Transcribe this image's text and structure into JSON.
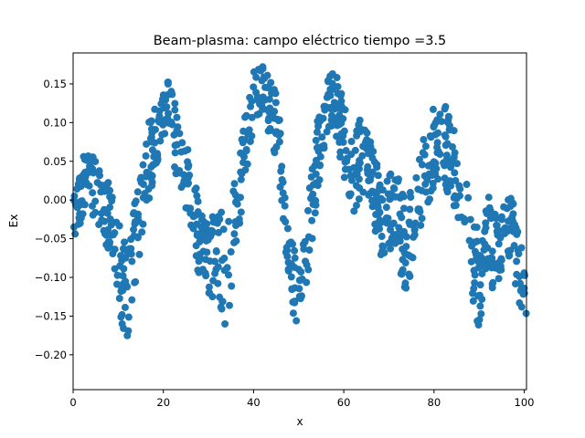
{
  "chart_data": {
    "type": "scatter",
    "title": "Beam-plasma: campo eléctrico  tiempo =3.5",
    "xlabel": "x",
    "ylabel": "Ex",
    "xlim": [
      0,
      100.5
    ],
    "ylim": [
      -0.245,
      0.19
    ],
    "grid": false,
    "legend": "none",
    "marker_color": "#1f77b4",
    "x_ticks": [
      0,
      20,
      40,
      60,
      80,
      100
    ],
    "x_tick_labels": [
      "0",
      "20",
      "40",
      "60",
      "80",
      "100"
    ],
    "y_ticks": [
      -0.2,
      -0.15,
      -0.1,
      -0.05,
      0.0,
      0.05,
      0.1,
      0.15
    ],
    "y_tick_labels": [
      "−0.20",
      "−0.15",
      "−0.10",
      "−0.05",
      "0.00",
      "0.05",
      "0.10",
      "0.15"
    ],
    "envelope": {
      "x": [
        0,
        2,
        4,
        6,
        8,
        10,
        12,
        14,
        16,
        18,
        20,
        22,
        24,
        26,
        28,
        30,
        32,
        34,
        36,
        38,
        40,
        42,
        44,
        46,
        48,
        50,
        52,
        54,
        56,
        58,
        60,
        62,
        64,
        66,
        68,
        70,
        72,
        74,
        76,
        78,
        80,
        82,
        84,
        86,
        88,
        90,
        92,
        94,
        96,
        98,
        100
      ],
      "center": [
        0.0,
        0.02,
        0.02,
        0.0,
        -0.02,
        -0.08,
        -0.12,
        -0.04,
        0.03,
        0.08,
        0.12,
        0.1,
        0.05,
        0.01,
        -0.06,
        -0.08,
        -0.06,
        -0.1,
        -0.02,
        0.06,
        0.13,
        0.14,
        0.12,
        0.06,
        -0.08,
        -0.13,
        -0.05,
        0.05,
        0.12,
        0.13,
        0.08,
        0.03,
        0.06,
        0.04,
        -0.02,
        -0.01,
        -0.03,
        -0.06,
        -0.01,
        0.04,
        0.06,
        0.07,
        0.05,
        0.01,
        -0.05,
        -0.11,
        -0.05,
        -0.07,
        -0.02,
        -0.06,
        -0.12
      ],
      "spread": [
        0.05,
        0.05,
        0.04,
        0.04,
        0.05,
        0.05,
        0.08,
        0.06,
        0.05,
        0.05,
        0.04,
        0.05,
        0.04,
        0.05,
        0.05,
        0.05,
        0.06,
        0.07,
        0.05,
        0.05,
        0.04,
        0.04,
        0.04,
        0.05,
        0.05,
        0.04,
        0.05,
        0.05,
        0.04,
        0.04,
        0.05,
        0.05,
        0.05,
        0.04,
        0.06,
        0.05,
        0.06,
        0.06,
        0.05,
        0.05,
        0.06,
        0.06,
        0.05,
        0.05,
        0.06,
        0.06,
        0.06,
        0.05,
        0.05,
        0.05,
        0.04
      ]
    }
  }
}
